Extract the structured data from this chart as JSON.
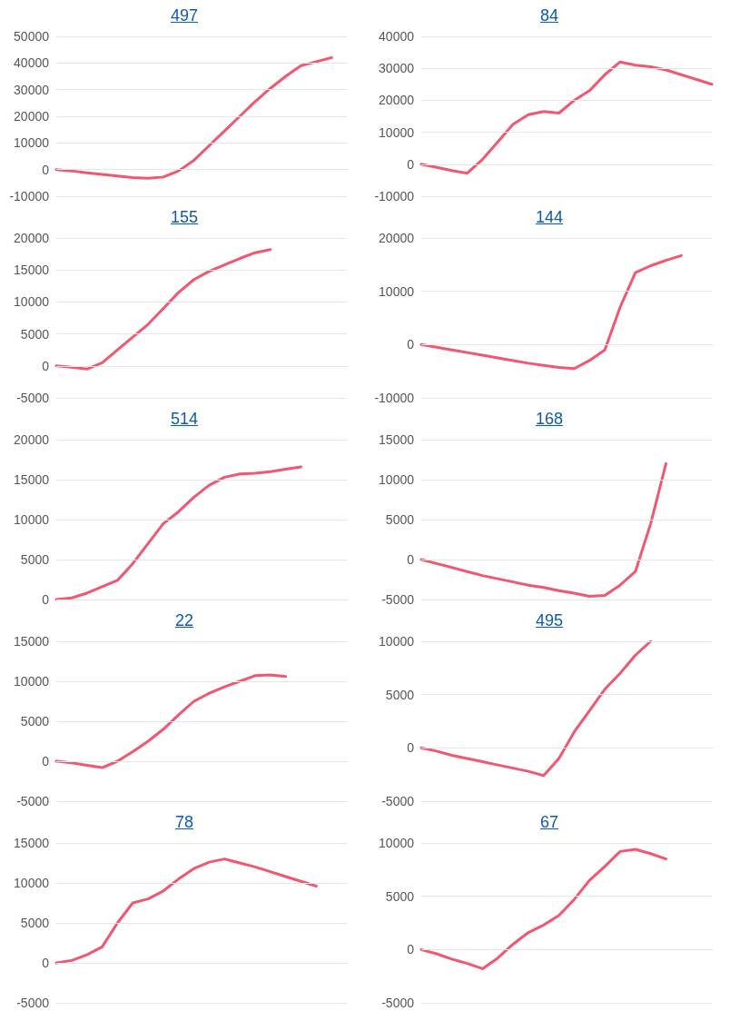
{
  "chart_data": [
    {
      "type": "line",
      "title": "497",
      "categories": [
        null,
        null,
        null,
        null,
        null,
        null,
        null,
        null,
        null,
        null,
        null,
        null,
        null,
        null,
        null,
        null,
        null,
        null,
        null,
        null
      ],
      "values": [
        0,
        -500,
        -1200,
        -1800,
        -2400,
        -3000,
        -3300,
        -2800,
        -500,
        3500,
        9000,
        14500,
        20000,
        25500,
        30500,
        35000,
        39000,
        40500,
        42000,
        null
      ],
      "color": "#f2576f",
      "ylim": [
        -10000,
        50000
      ],
      "yticks": [
        -10000,
        0,
        10000,
        20000,
        30000,
        40000,
        50000
      ],
      "grid": "y"
    },
    {
      "type": "line",
      "title": "84",
      "categories": [
        null,
        null,
        null,
        null,
        null,
        null,
        null,
        null,
        null,
        null,
        null,
        null,
        null,
        null,
        null,
        null,
        null,
        null,
        null,
        null
      ],
      "values": [
        0,
        -1000,
        -2000,
        -2800,
        1500,
        7000,
        12500,
        15500,
        16500,
        16000,
        20000,
        23000,
        28000,
        32000,
        31000,
        30500,
        29500,
        28000,
        26500,
        25000
      ],
      "color": "#f2576f",
      "ylim": [
        -10000,
        40000
      ],
      "yticks": [
        -10000,
        0,
        10000,
        20000,
        30000,
        40000
      ],
      "grid": "y"
    },
    {
      "type": "line",
      "title": "155",
      "categories": [
        null,
        null,
        null,
        null,
        null,
        null,
        null,
        null,
        null,
        null,
        null,
        null,
        null,
        null,
        null,
        null,
        null,
        null,
        null,
        null
      ],
      "values": [
        0,
        -200,
        -500,
        500,
        2500,
        4500,
        6500,
        9000,
        11500,
        13500,
        14800,
        15800,
        16800,
        17700,
        18200,
        null,
        null,
        null,
        null,
        null
      ],
      "color": "#f2576f",
      "ylim": [
        -5000,
        20000
      ],
      "yticks": [
        -5000,
        0,
        5000,
        10000,
        15000,
        20000
      ],
      "grid": "y"
    },
    {
      "type": "line",
      "title": "144",
      "categories": [
        null,
        null,
        null,
        null,
        null,
        null,
        null,
        null,
        null,
        null,
        null,
        null,
        null,
        null,
        null,
        null,
        null,
        null,
        null,
        null
      ],
      "values": [
        0,
        -500,
        -1000,
        -1500,
        -2000,
        -2500,
        -3000,
        -3500,
        -3900,
        -4300,
        -4500,
        -3000,
        -1000,
        7000,
        13500,
        14800,
        15800,
        16700,
        null,
        null
      ],
      "color": "#f2576f",
      "ylim": [
        -10000,
        20000
      ],
      "yticks": [
        -10000,
        0,
        10000,
        20000
      ],
      "grid": "y"
    },
    {
      "type": "line",
      "title": "514",
      "categories": [
        null,
        null,
        null,
        null,
        null,
        null,
        null,
        null,
        null,
        null,
        null,
        null,
        null,
        null,
        null,
        null,
        null,
        null,
        null,
        null
      ],
      "values": [
        0,
        200,
        800,
        1600,
        2400,
        4500,
        7000,
        9500,
        11000,
        12800,
        14300,
        15300,
        15700,
        15800,
        16000,
        16300,
        16600,
        null,
        null,
        null
      ],
      "color": "#f2576f",
      "ylim": [
        0,
        20000
      ],
      "yticks": [
        0,
        5000,
        10000,
        15000,
        20000
      ],
      "grid": "y"
    },
    {
      "type": "line",
      "title": "168",
      "categories": [
        null,
        null,
        null,
        null,
        null,
        null,
        null,
        null,
        null,
        null,
        null,
        null,
        null,
        null,
        null,
        null,
        null,
        null,
        null,
        null
      ],
      "values": [
        0,
        -500,
        -1000,
        -1500,
        -2000,
        -2400,
        -2800,
        -3200,
        -3500,
        -3900,
        -4200,
        -4600,
        -4500,
        -3200,
        -1500,
        4500,
        12000,
        null,
        null,
        null
      ],
      "color": "#f2576f",
      "ylim": [
        -5000,
        15000
      ],
      "yticks": [
        -5000,
        0,
        5000,
        10000,
        15000
      ],
      "grid": "y"
    },
    {
      "type": "line",
      "title": "22",
      "categories": [
        null,
        null,
        null,
        null,
        null,
        null,
        null,
        null,
        null,
        null,
        null,
        null,
        null,
        null,
        null,
        null,
        null,
        null,
        null,
        null
      ],
      "values": [
        0,
        -200,
        -500,
        -800,
        0,
        1200,
        2500,
        4000,
        5800,
        7500,
        8500,
        9300,
        10000,
        10700,
        10800,
        10600,
        null,
        null,
        null,
        null
      ],
      "color": "#f2576f",
      "ylim": [
        -5000,
        15000
      ],
      "yticks": [
        -5000,
        0,
        5000,
        10000,
        15000
      ],
      "grid": "y"
    },
    {
      "type": "line",
      "title": "495",
      "categories": [
        null,
        null,
        null,
        null,
        null,
        null,
        null,
        null,
        null,
        null,
        null,
        null,
        null,
        null,
        null,
        null,
        null,
        null,
        null,
        null
      ],
      "values": [
        0,
        -300,
        -700,
        -1000,
        -1300,
        -1600,
        -1900,
        -2200,
        -2600,
        -1000,
        1500,
        3500,
        5500,
        7000,
        8700,
        10000,
        null,
        null,
        null,
        null
      ],
      "color": "#f2576f",
      "ylim": [
        -5000,
        10000
      ],
      "yticks": [
        -5000,
        0,
        5000,
        10000
      ],
      "grid": "y"
    },
    {
      "type": "line",
      "title": "78",
      "categories": [
        null,
        null,
        null,
        null,
        null,
        null,
        null,
        null,
        null,
        null,
        null,
        null,
        null,
        null,
        null,
        null,
        null,
        null,
        null,
        null
      ],
      "values": [
        0,
        300,
        1000,
        2000,
        5000,
        7500,
        8000,
        9000,
        10500,
        11800,
        12600,
        13000,
        12500,
        12000,
        11400,
        10800,
        10200,
        9600,
        null,
        null
      ],
      "color": "#f2576f",
      "ylim": [
        -5000,
        15000
      ],
      "yticks": [
        -5000,
        0,
        5000,
        10000,
        15000
      ],
      "grid": "y"
    },
    {
      "type": "line",
      "title": "67",
      "categories": [
        null,
        null,
        null,
        null,
        null,
        null,
        null,
        null,
        null,
        null,
        null,
        null,
        null,
        null,
        null,
        null,
        null,
        null,
        null,
        null
      ],
      "values": [
        0,
        -400,
        -900,
        -1300,
        -1800,
        -800,
        500,
        1600,
        2300,
        3200,
        4700,
        6500,
        7800,
        9200,
        9400,
        9000,
        8500,
        null,
        null,
        null
      ],
      "color": "#f2576f",
      "ylim": [
        -5000,
        10000
      ],
      "yticks": [
        -5000,
        0,
        5000,
        10000
      ],
      "grid": "y"
    }
  ]
}
